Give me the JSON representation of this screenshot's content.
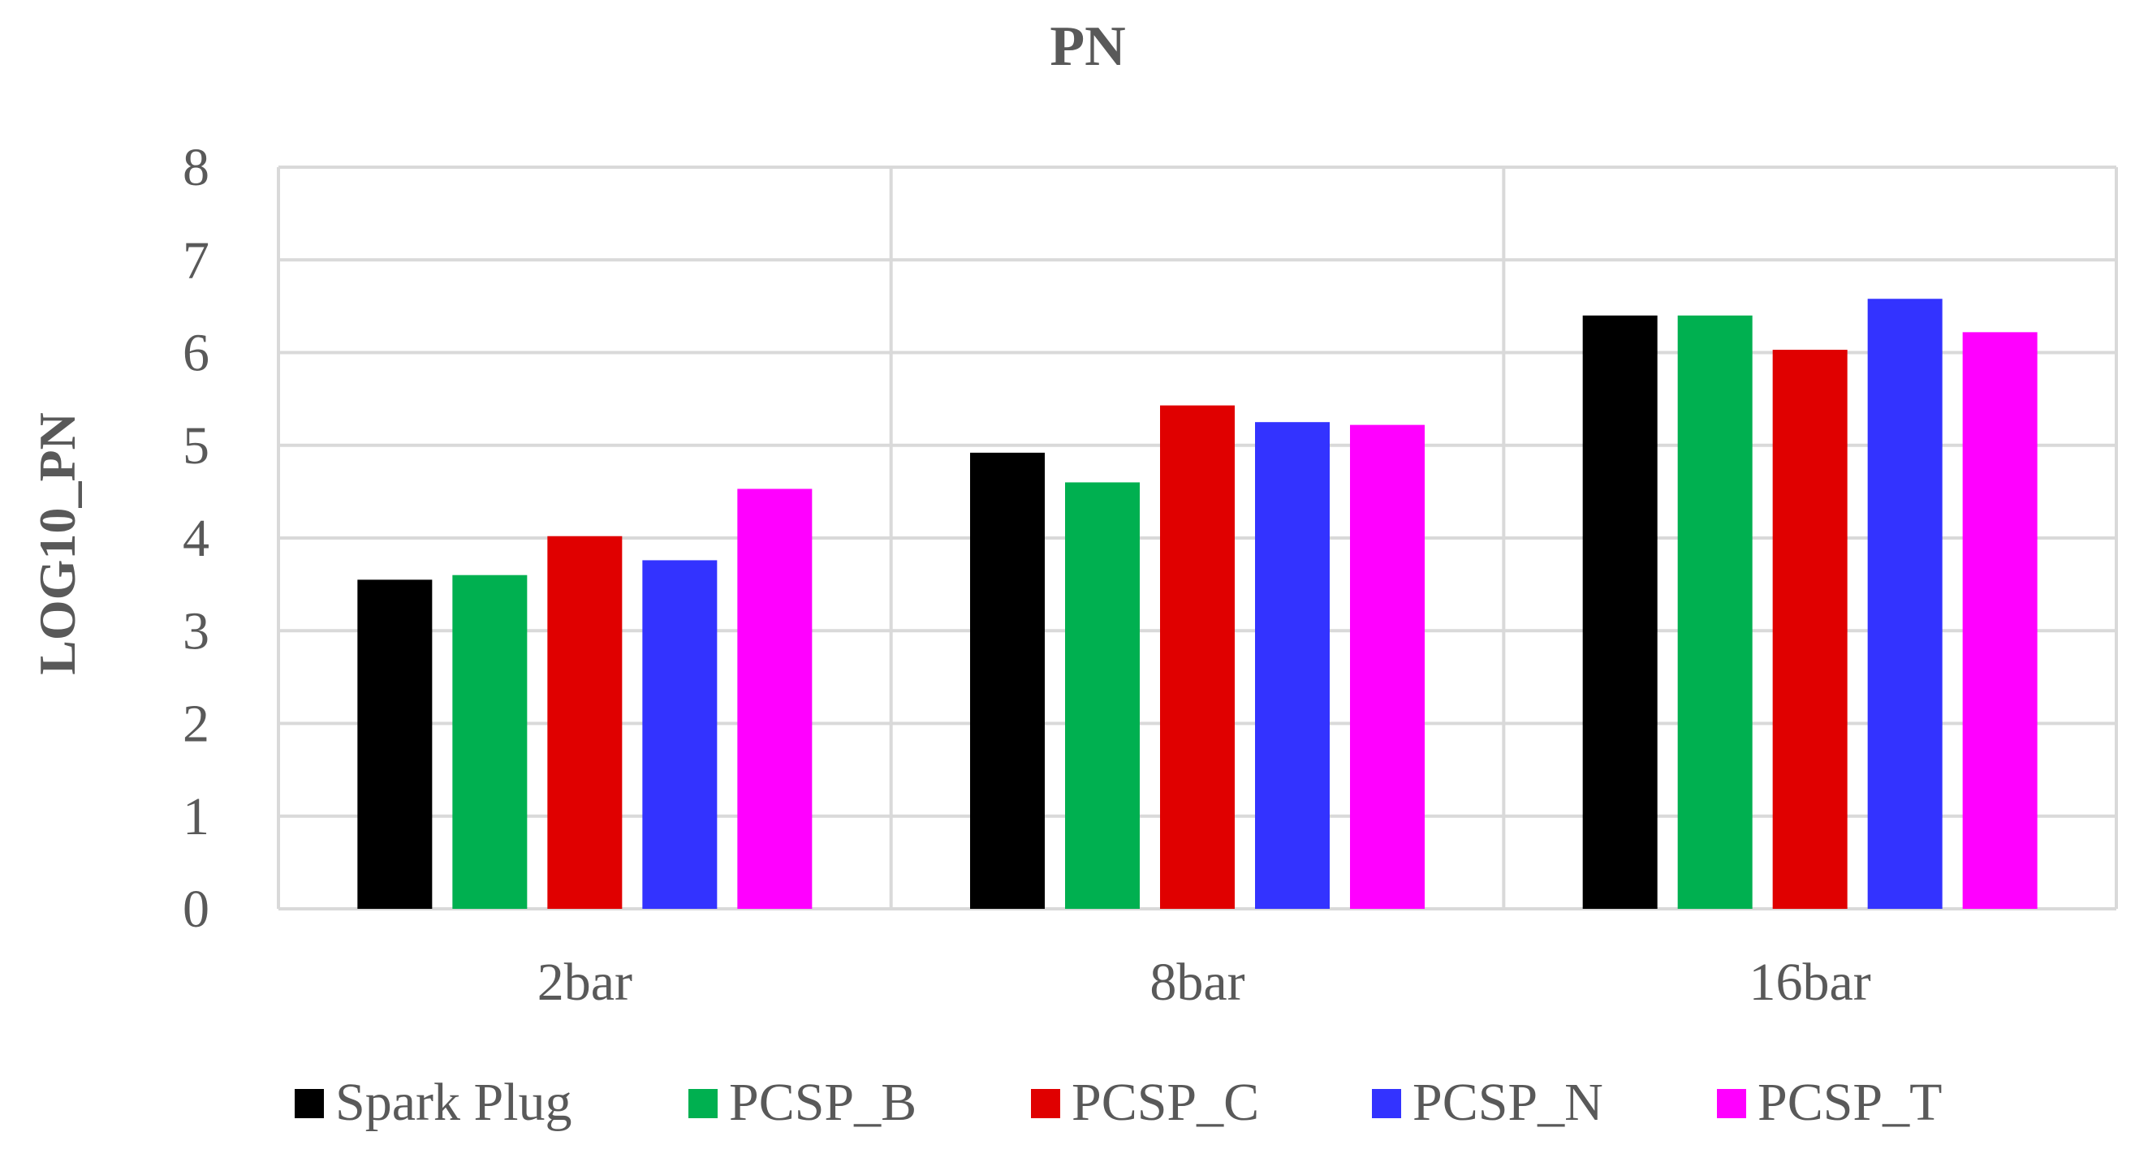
{
  "chart_data": {
    "type": "bar",
    "title": "PN",
    "xlabel": "",
    "ylabel": "LOG10_PN",
    "categories": [
      "2bar",
      "8bar",
      "16bar"
    ],
    "ylim": [
      0,
      8
    ],
    "yticks": [
      "0",
      "1",
      "2",
      "3",
      "4",
      "5",
      "6",
      "7",
      "8"
    ],
    "grid": true,
    "legend_position": "bottom",
    "series": [
      {
        "name": "Spark Plug",
        "color": "#000000",
        "values": [
          3.55,
          4.92,
          6.4
        ]
      },
      {
        "name": "PCSP_B",
        "color": "#00b050",
        "values": [
          3.6,
          4.6,
          6.4
        ]
      },
      {
        "name": "PCSP_C",
        "color": "#e00000",
        "values": [
          4.02,
          5.43,
          6.03
        ]
      },
      {
        "name": "PCSP_N",
        "color": "#3333ff",
        "values": [
          3.76,
          5.25,
          6.58
        ]
      },
      {
        "name": "PCSP_T",
        "color": "#ff00ff",
        "values": [
          4.53,
          5.22,
          6.22
        ]
      }
    ]
  }
}
